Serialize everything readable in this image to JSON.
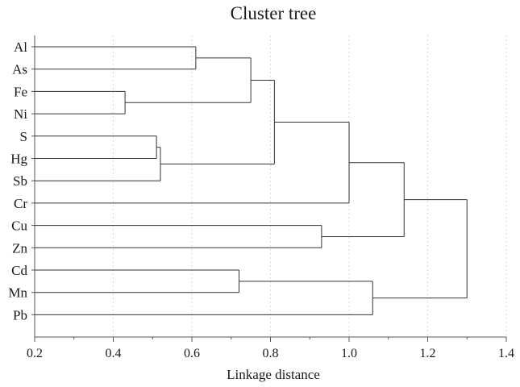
{
  "chart_data": {
    "type": "dendrogram",
    "title": "Cluster tree",
    "xlabel": "Linkage distance",
    "ylabel": "",
    "xlim": [
      0.2,
      1.4
    ],
    "xticks": [
      0.2,
      0.4,
      0.6,
      0.8,
      1.0,
      1.2,
      1.4
    ],
    "xtick_labels": [
      "0.2",
      "0.4",
      "0.6",
      "0.8",
      "1.0",
      "1.2",
      "1.4"
    ],
    "grid": true,
    "leaves": [
      "Al",
      "As",
      "Fe",
      "Ni",
      "S",
      "Hg",
      "Sb",
      "Cr",
      "Cu",
      "Zn",
      "Cd",
      "Mn",
      "Pb"
    ],
    "leaf_start": 0.2,
    "merges": [
      {
        "id": "m1",
        "left": "Fe",
        "right": "Ni",
        "distance": 0.43
      },
      {
        "id": "m2",
        "left": "S",
        "right": "Hg",
        "distance": 0.51
      },
      {
        "id": "m3",
        "left": "m2",
        "right": "Sb",
        "distance": 0.52
      },
      {
        "id": "m4",
        "left": "Al",
        "right": "As",
        "distance": 0.61
      },
      {
        "id": "m5",
        "left": "Cd",
        "right": "Mn",
        "distance": 0.72
      },
      {
        "id": "m6",
        "left": "m4",
        "right": "m1",
        "distance": 0.75
      },
      {
        "id": "m7",
        "left": "m6",
        "right": "m3",
        "distance": 0.81
      },
      {
        "id": "m8",
        "left": "Cu",
        "right": "Zn",
        "distance": 0.93
      },
      {
        "id": "m9",
        "left": "m7",
        "right": "Cr",
        "distance": 1.0
      },
      {
        "id": "m10",
        "left": "m5",
        "right": "Pb",
        "distance": 1.06
      },
      {
        "id": "m11",
        "left": "m9",
        "right": "m8",
        "distance": 1.14
      },
      {
        "id": "m12",
        "left": "m11",
        "right": "m10",
        "distance": 1.3
      }
    ]
  }
}
